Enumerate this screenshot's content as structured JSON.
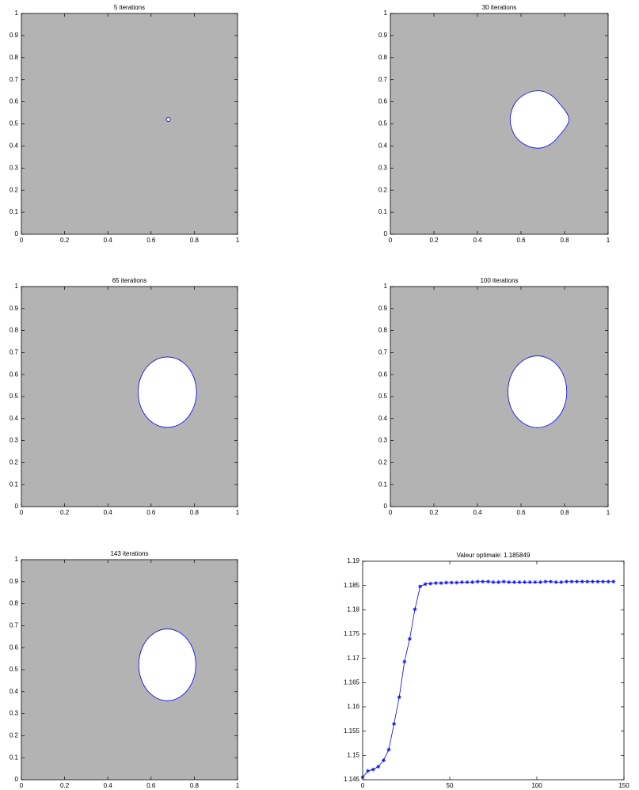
{
  "chart_data": [
    {
      "type": "region",
      "title": "5 iterations",
      "xlim": [
        0,
        1
      ],
      "ylim": [
        0,
        1
      ],
      "xticks": [
        0,
        0.2,
        0.4,
        0.6,
        0.8,
        1
      ],
      "yticks": [
        0,
        0.1,
        0.2,
        0.3,
        0.4,
        0.5,
        0.6,
        0.7,
        0.8,
        0.9,
        1
      ],
      "background_color": "#b3b3b3",
      "color": "#0000ff",
      "hole": {
        "x": [
          0.69,
          0.68,
          0.67,
          0.68
        ],
        "y": [
          0.52,
          0.53,
          0.52,
          0.51
        ]
      }
    },
    {
      "type": "region",
      "title": "30 iterations",
      "xlim": [
        0,
        1
      ],
      "ylim": [
        0,
        1
      ],
      "xticks": [
        0,
        0.2,
        0.4,
        0.6,
        0.8,
        1
      ],
      "yticks": [
        0,
        0.1,
        0.2,
        0.3,
        0.4,
        0.5,
        0.6,
        0.7,
        0.8,
        0.9,
        1
      ],
      "background_color": "#b3b3b3",
      "color": "#0000ff",
      "hole": {
        "x": [
          0.55,
          0.57,
          0.62,
          0.68,
          0.73,
          0.77,
          0.82,
          0.77,
          0.73,
          0.68,
          0.62,
          0.57
        ],
        "y": [
          0.52,
          0.59,
          0.635,
          0.65,
          0.635,
          0.6,
          0.52,
          0.44,
          0.405,
          0.39,
          0.405,
          0.45
        ]
      }
    },
    {
      "type": "region",
      "title": "65 iterations",
      "xlim": [
        0,
        1
      ],
      "ylim": [
        0,
        1
      ],
      "xticks": [
        0,
        0.2,
        0.4,
        0.6,
        0.8,
        1
      ],
      "yticks": [
        0,
        0.1,
        0.2,
        0.3,
        0.4,
        0.5,
        0.6,
        0.7,
        0.8,
        0.9,
        1
      ],
      "background_color": "#b3b3b3",
      "color": "#0000ff",
      "hole": {
        "x": [
          0.81,
          0.792,
          0.743,
          0.675,
          0.608,
          0.558,
          0.54,
          0.558,
          0.608,
          0.675,
          0.743,
          0.792
        ],
        "y": [
          0.52,
          0.6,
          0.659,
          0.68,
          0.659,
          0.6,
          0.52,
          0.44,
          0.381,
          0.36,
          0.381,
          0.44
        ]
      }
    },
    {
      "type": "region",
      "title": "100 iterations",
      "xlim": [
        0,
        1
      ],
      "ylim": [
        0,
        1
      ],
      "xticks": [
        0,
        0.2,
        0.4,
        0.6,
        0.8,
        1
      ],
      "yticks": [
        0,
        0.1,
        0.2,
        0.3,
        0.4,
        0.5,
        0.6,
        0.7,
        0.8,
        0.9,
        1
      ],
      "background_color": "#b3b3b3",
      "color": "#0000ff",
      "hole": {
        "x": [
          0.81,
          0.792,
          0.743,
          0.675,
          0.608,
          0.558,
          0.54,
          0.558,
          0.608,
          0.675,
          0.743,
          0.792
        ],
        "y": [
          0.522,
          0.604,
          0.663,
          0.685,
          0.663,
          0.604,
          0.522,
          0.44,
          0.381,
          0.359,
          0.381,
          0.44
        ]
      }
    },
    {
      "type": "region",
      "title": "143 iterations",
      "xlim": [
        0,
        1
      ],
      "ylim": [
        0,
        1
      ],
      "xticks": [
        0,
        0.2,
        0.4,
        0.6,
        0.8,
        1
      ],
      "yticks": [
        0,
        0.1,
        0.2,
        0.3,
        0.4,
        0.5,
        0.6,
        0.7,
        0.8,
        0.9,
        1
      ],
      "background_color": "#b3b3b3",
      "color": "#0000ff",
      "hole": {
        "x": [
          0.807,
          0.789,
          0.741,
          0.675,
          0.609,
          0.561,
          0.543,
          0.561,
          0.609,
          0.675,
          0.741,
          0.789
        ],
        "y": [
          0.522,
          0.604,
          0.663,
          0.685,
          0.663,
          0.604,
          0.522,
          0.44,
          0.381,
          0.359,
          0.381,
          0.44
        ]
      }
    },
    {
      "type": "line",
      "title": "Valeur optimale: 1.185849",
      "xlim": [
        0,
        150
      ],
      "ylim": [
        1.145,
        1.19
      ],
      "xticks": [
        0,
        50,
        100,
        150
      ],
      "yticks": [
        1.145,
        1.15,
        1.155,
        1.16,
        1.165,
        1.17,
        1.175,
        1.18,
        1.185,
        1.19
      ],
      "color": "#0000ff",
      "marker": "*",
      "x": [
        0,
        3,
        6,
        9,
        12,
        15,
        18,
        21,
        24,
        27,
        30,
        33,
        36,
        39,
        42,
        45,
        48,
        51,
        54,
        57,
        60,
        63,
        66,
        69,
        72,
        75,
        78,
        81,
        84,
        87,
        90,
        93,
        96,
        99,
        102,
        105,
        108,
        111,
        114,
        117,
        120,
        123,
        126,
        129,
        132,
        135,
        138,
        141,
        144
      ],
      "values": [
        1.1455,
        1.1468,
        1.1471,
        1.1477,
        1.149,
        1.1512,
        1.1565,
        1.162,
        1.1693,
        1.174,
        1.1801,
        1.1848,
        1.1853,
        1.1854,
        1.1855,
        1.1855,
        1.1856,
        1.1856,
        1.1856,
        1.1857,
        1.1857,
        1.1857,
        1.1858,
        1.1858,
        1.1858,
        1.1857,
        1.1857,
        1.1858,
        1.1857,
        1.1857,
        1.1857,
        1.1857,
        1.1857,
        1.1857,
        1.1857,
        1.1858,
        1.1858,
        1.1857,
        1.1857,
        1.1858,
        1.1858,
        1.1858,
        1.1858,
        1.1858,
        1.1858,
        1.1858,
        1.1858,
        1.1858,
        1.1858
      ]
    }
  ]
}
